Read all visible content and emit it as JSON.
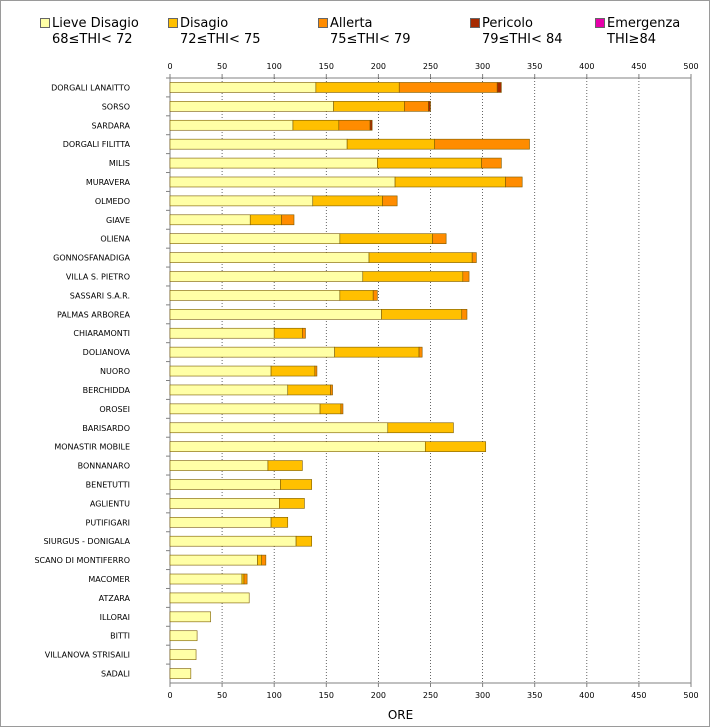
{
  "legend": [
    {
      "name": "Lieve Disagio",
      "range": "68≤THI< 72",
      "color": "#FFFFA6"
    },
    {
      "name": "Disagio",
      "range": "72≤THI< 75",
      "color": "#FFC000"
    },
    {
      "name": "Allerta",
      "range": "75≤THI< 79",
      "color": "#FF8C00"
    },
    {
      "name": "Pericolo",
      "range": "79≤THI< 84",
      "color": "#A52A00"
    },
    {
      "name": "Emergenza",
      "range": "THI≥84",
      "color": "#E600AA"
    }
  ],
  "chart_data": {
    "type": "bar",
    "orientation": "horizontal",
    "stacked": true,
    "xlabel": "ORE",
    "xlim": [
      0,
      500
    ],
    "xticks": [
      0,
      50,
      100,
      150,
      200,
      250,
      300,
      350,
      400,
      450,
      500
    ],
    "grid": "vertical dotted",
    "legend_position": "top",
    "categories": [
      "DORGALI LANAITTO",
      "SORSO",
      "SARDARA",
      "DORGALI FILITTA",
      "MILIS",
      "MURAVERA",
      "OLMEDO",
      "GIAVE",
      "OLIENA",
      "GONNOSFANADIGA",
      "VILLA S. PIETRO",
      "SASSARI S.A.R.",
      "PALMAS ARBOREA",
      "CHIARAMONTI",
      "DOLIANOVA",
      "NUORO",
      "BERCHIDDA",
      "OROSEI",
      "BARISARDO",
      "MONASTIR MOBILE",
      "BONNANARO",
      "BENETUTTI",
      "AGLIENTU",
      "PUTIFIGARI",
      "SIURGUS - DONIGALA",
      "SCANO DI MONTIFERRO",
      "MACOMER",
      "ATZARA",
      "ILLORAI",
      "BITTI",
      "VILLANOVA STRISAILI",
      "SADALI"
    ],
    "series": [
      {
        "name": "Lieve Disagio",
        "color": "#FFFFA6",
        "values": [
          140,
          157,
          118,
          170,
          199,
          216,
          137,
          77,
          163,
          191,
          185,
          163,
          203,
          100,
          158,
          97,
          113,
          144,
          209,
          245,
          94,
          106,
          105,
          97,
          121,
          84,
          69,
          76,
          39,
          26,
          25,
          20
        ]
      },
      {
        "name": "Disagio",
        "color": "#FFC000",
        "values": [
          80,
          68,
          44,
          84,
          100,
          106,
          67,
          30,
          89,
          99,
          96,
          32,
          77,
          27,
          81,
          42,
          41,
          20,
          63,
          58,
          33,
          30,
          24,
          16,
          15,
          4,
          2,
          0,
          0,
          0,
          0,
          0
        ]
      },
      {
        "name": "Allerta",
        "color": "#FF8C00",
        "values": [
          94,
          23,
          30,
          91,
          19,
          16,
          14,
          12,
          13,
          4,
          6,
          4,
          5,
          3,
          3,
          2,
          2,
          2,
          0,
          0,
          0,
          0,
          0,
          0,
          0,
          4,
          3,
          0,
          0,
          0,
          0,
          0
        ]
      },
      {
        "name": "Pericolo",
        "color": "#A52A00",
        "values": [
          4,
          2,
          2,
          0,
          0,
          0,
          0,
          0,
          0,
          0,
          0,
          0,
          0,
          0,
          0,
          0,
          0,
          0,
          0,
          0,
          0,
          0,
          0,
          0,
          0,
          0,
          0,
          0,
          0,
          0,
          0,
          0
        ]
      },
      {
        "name": "Emergenza",
        "color": "#E600AA",
        "values": [
          0,
          0,
          0,
          0,
          0,
          0,
          0,
          0,
          0,
          0,
          0,
          0,
          0,
          0,
          0,
          0,
          0,
          0,
          0,
          0,
          0,
          0,
          0,
          0,
          0,
          0,
          0,
          0,
          0,
          0,
          0,
          0
        ]
      }
    ]
  }
}
